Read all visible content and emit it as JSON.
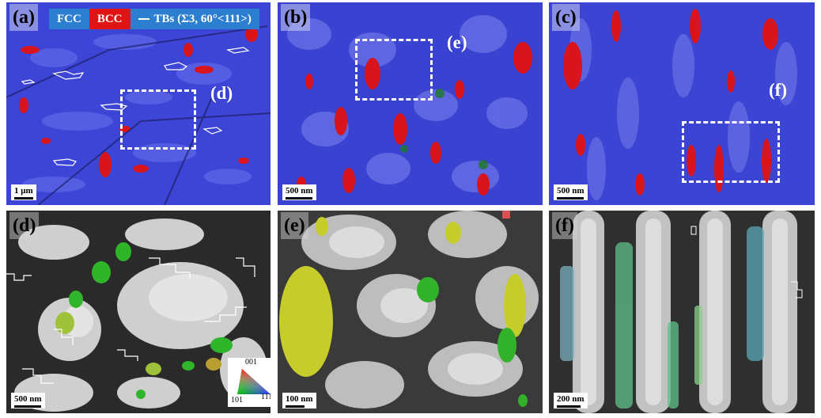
{
  "legend": {
    "fcc": "FCC",
    "bcc": "BCC",
    "tb": "TBs (Σ3, 60°<111>)",
    "colors": {
      "fcc": "#2c7fd0",
      "bcc": "#e01414",
      "tb_line": "#ffffff"
    }
  },
  "panels": {
    "a": {
      "label": "(a)",
      "scale": "1 μm",
      "callout": "(d)"
    },
    "b": {
      "label": "(b)",
      "scale": "500 nm",
      "callout": "(e)"
    },
    "c": {
      "label": "(c)",
      "scale": "500 nm",
      "callout": "(f)"
    },
    "d": {
      "label": "(d)",
      "scale": "500 nm"
    },
    "e": {
      "label": "(e)",
      "scale": "100 nm"
    },
    "f": {
      "label": "(f)",
      "scale": "200 nm"
    }
  },
  "ipf_key": {
    "top": "001",
    "left": "101",
    "right": "111"
  }
}
